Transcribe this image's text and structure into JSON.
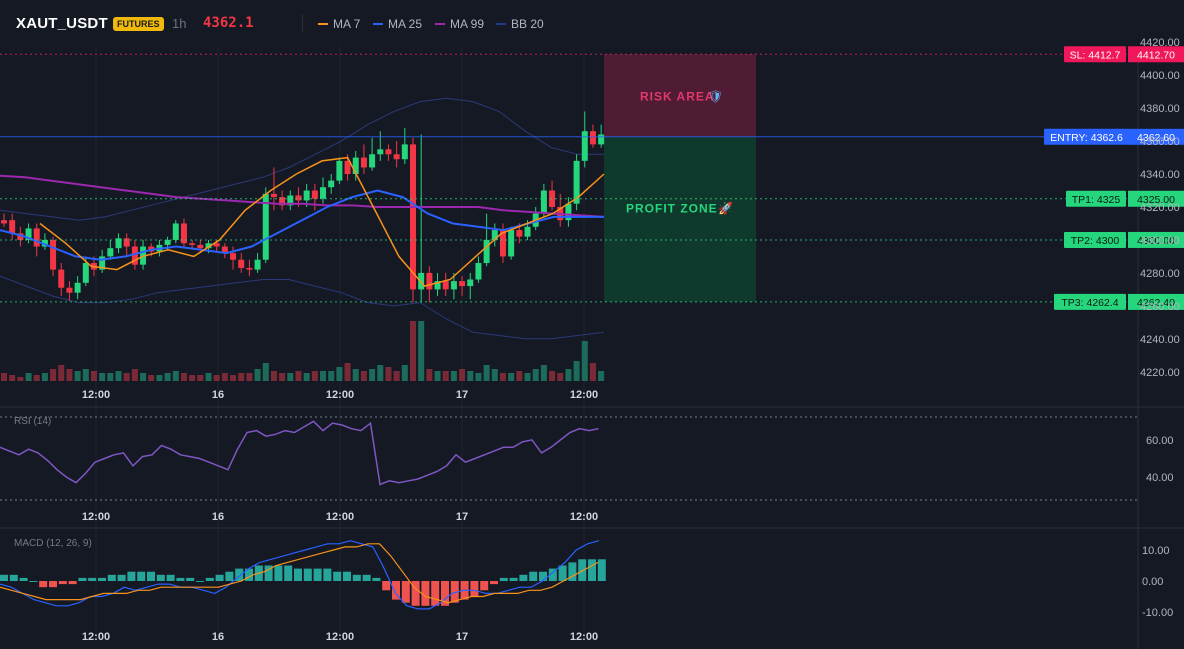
{
  "header": {
    "symbol": "XAUT_USDT",
    "badge": "FUTURES",
    "interval": "1h",
    "last_price": "4362.1",
    "indicators": [
      {
        "label": "MA 7",
        "color": "#f7931a"
      },
      {
        "label": "MA 25",
        "color": "#2962ff"
      },
      {
        "label": "MA 99",
        "color": "#9c27b0"
      },
      {
        "label": "BB 20",
        "color": "#1e3a8a"
      }
    ]
  },
  "colors": {
    "background": "#151924",
    "up": "#26d67c",
    "down": "#f23645",
    "entry_line": "#2962ff",
    "sl_line": "#e91e63",
    "tp_line": "#26d67c",
    "risk_zone": "#5b1d36",
    "profit_zone": "#0f3d30"
  },
  "price_scale": {
    "min": 4215,
    "max": 4425,
    "ticks": [
      "4420.00",
      "4400.00",
      "4380.00",
      "4360.00",
      "4340.00",
      "4320.00",
      "4300.00",
      "4280.00",
      "4260.00",
      "4240.00",
      "4220.00"
    ]
  },
  "time_axis": {
    "labels": [
      "12:00",
      "16",
      "12:00",
      "17",
      "12:00"
    ]
  },
  "levels": {
    "sl": {
      "tag": "SL: 4412.7",
      "price_label": "4412.70",
      "value": 4412.7
    },
    "entry": {
      "tag": "ENTRY: 4362.6",
      "price_label": "4362.60",
      "value": 4362.6
    },
    "tp1": {
      "tag": "TP1: 4325",
      "price_label": "4325.00",
      "value": 4325
    },
    "tp2": {
      "tag": "TP2: 4300",
      "price_label": "4300.00",
      "value": 4300
    },
    "tp3": {
      "tag": "TP3: 4262.4",
      "price_label": "4262.40",
      "value": 4262.4
    }
  },
  "zones": {
    "risk_label": "RISK AREA",
    "risk_icon": "shield-icon",
    "profit_label": "PROFIT ZONE",
    "profit_icon": "rocket-icon"
  },
  "chart_data": {
    "type": "candlestick",
    "candles": [
      [
        4312,
        4310,
        4308,
        4316
      ],
      [
        4312,
        4304,
        4300,
        4316
      ],
      [
        4304,
        4300,
        4296,
        4308
      ],
      [
        4300,
        4307,
        4298,
        4310
      ],
      [
        4307,
        4296,
        4290,
        4310
      ],
      [
        4296,
        4300,
        4294,
        4304
      ],
      [
        4300,
        4282,
        4278,
        4302
      ],
      [
        4282,
        4271,
        4266,
        4286
      ],
      [
        4271,
        4268,
        4263,
        4275
      ],
      [
        4268,
        4274,
        4264,
        4278
      ],
      [
        4274,
        4286,
        4272,
        4290
      ],
      [
        4286,
        4282,
        4278,
        4290
      ],
      [
        4282,
        4290,
        4280,
        4294
      ],
      [
        4290,
        4295,
        4288,
        4300
      ],
      [
        4295,
        4301,
        4292,
        4304
      ],
      [
        4301,
        4296,
        4290,
        4304
      ],
      [
        4296,
        4285,
        4282,
        4300
      ],
      [
        4285,
        4296,
        4282,
        4300
      ],
      [
        4296,
        4293,
        4290,
        4298
      ],
      [
        4293,
        4297,
        4290,
        4300
      ],
      [
        4297,
        4300,
        4294,
        4302
      ],
      [
        4300,
        4310,
        4298,
        4312
      ],
      [
        4310,
        4298,
        4296,
        4313
      ],
      [
        4298,
        4297,
        4294,
        4300
      ],
      [
        4297,
        4295,
        4292,
        4300
      ],
      [
        4295,
        4298,
        4292,
        4300
      ],
      [
        4298,
        4296,
        4293,
        4300
      ],
      [
        4296,
        4292,
        4289,
        4298
      ],
      [
        4292,
        4288,
        4282,
        4296
      ],
      [
        4288,
        4283,
        4280,
        4292
      ],
      [
        4283,
        4282,
        4278,
        4288
      ],
      [
        4282,
        4288,
        4280,
        4292
      ],
      [
        4288,
        4328,
        4286,
        4332
      ],
      [
        4328,
        4326,
        4318,
        4344
      ],
      [
        4326,
        4321,
        4318,
        4330
      ],
      [
        4321,
        4327,
        4318,
        4330
      ],
      [
        4327,
        4324,
        4320,
        4332
      ],
      [
        4324,
        4330,
        4320,
        4334
      ],
      [
        4330,
        4325,
        4318,
        4334
      ],
      [
        4325,
        4332,
        4322,
        4338
      ],
      [
        4332,
        4336,
        4328,
        4340
      ],
      [
        4336,
        4348,
        4334,
        4350
      ],
      [
        4348,
        4340,
        4336,
        4352
      ],
      [
        4340,
        4350,
        4336,
        4354
      ],
      [
        4350,
        4344,
        4340,
        4358
      ],
      [
        4344,
        4352,
        4342,
        4362
      ],
      [
        4352,
        4355,
        4348,
        4366
      ],
      [
        4355,
        4352,
        4348,
        4358
      ],
      [
        4352,
        4349,
        4344,
        4360
      ],
      [
        4349,
        4358,
        4346,
        4368
      ],
      [
        4358,
        4270,
        4262,
        4362
      ],
      [
        4270,
        4280,
        4262,
        4364
      ],
      [
        4280,
        4270,
        4262,
        4284
      ],
      [
        4270,
        4275,
        4266,
        4280
      ],
      [
        4275,
        4270,
        4266,
        4280
      ],
      [
        4270,
        4275,
        4264,
        4280
      ],
      [
        4275,
        4272,
        4266,
        4278
      ],
      [
        4272,
        4276,
        4264,
        4280
      ],
      [
        4276,
        4286,
        4274,
        4290
      ],
      [
        4286,
        4300,
        4284,
        4316
      ],
      [
        4300,
        4306,
        4296,
        4310
      ],
      [
        4306,
        4290,
        4286,
        4310
      ],
      [
        4290,
        4306,
        4288,
        4308
      ],
      [
        4306,
        4302,
        4298,
        4310
      ],
      [
        4302,
        4308,
        4300,
        4312
      ],
      [
        4308,
        4316,
        4306,
        4320
      ],
      [
        4316,
        4330,
        4314,
        4334
      ],
      [
        4330,
        4320,
        4318,
        4336
      ],
      [
        4320,
        4312,
        4308,
        4328
      ],
      [
        4312,
        4322,
        4308,
        4326
      ],
      [
        4322,
        4348,
        4318,
        4352
      ],
      [
        4348,
        4366,
        4344,
        4378
      ],
      [
        4366,
        4358,
        4356,
        4370
      ],
      [
        4358,
        4364,
        4356,
        4370
      ]
    ],
    "volumes": [
      4,
      3,
      2,
      4,
      3,
      4,
      6,
      8,
      6,
      5,
      6,
      5,
      4,
      4,
      5,
      4,
      6,
      4,
      3,
      3,
      4,
      5,
      4,
      3,
      3,
      4,
      3,
      4,
      3,
      4,
      4,
      6,
      9,
      5,
      4,
      4,
      5,
      4,
      5,
      5,
      5,
      7,
      9,
      6,
      5,
      6,
      8,
      7,
      5,
      8,
      30,
      30,
      6,
      5,
      5,
      5,
      6,
      5,
      4,
      8,
      6,
      4,
      4,
      5,
      4,
      6,
      8,
      5,
      4,
      6,
      10,
      20,
      9,
      5
    ],
    "rsi": [
      56,
      54,
      52,
      55,
      53,
      49,
      44,
      40,
      37,
      42,
      48,
      50,
      52,
      53,
      46,
      51,
      52,
      57,
      55,
      52,
      51,
      50,
      48,
      46,
      44,
      55,
      64,
      65,
      62,
      63,
      65,
      64,
      67,
      70,
      65,
      69,
      68,
      66,
      65,
      69,
      36,
      38,
      37,
      38,
      39,
      41,
      43,
      46,
      52,
      48,
      50,
      52,
      54,
      56,
      56,
      59,
      60,
      53,
      56,
      60,
      64,
      66,
      65,
      66
    ],
    "rsi_levels": [
      "60.00",
      "40.00"
    ],
    "macd_hist": [
      2,
      2,
      1,
      0,
      -2,
      -2,
      -1,
      -1,
      1,
      1,
      1,
      2,
      2,
      3,
      3,
      3,
      2,
      2,
      1,
      1,
      0,
      1,
      2,
      3,
      4,
      4,
      5,
      5,
      5,
      5,
      4,
      4,
      4,
      4,
      3,
      3,
      2,
      2,
      1,
      -3,
      -6,
      -7,
      -8,
      -8,
      -8,
      -8,
      -7,
      -6,
      -5,
      -3,
      -1,
      1,
      1,
      2,
      3,
      3,
      4,
      5,
      6,
      7,
      7,
      7
    ],
    "macd_line": [
      -1,
      -2,
      -4,
      -6,
      -7,
      -8,
      -8,
      -7,
      -5,
      -5,
      -4,
      -2,
      -3,
      -2,
      -1,
      -1,
      -2,
      -2,
      -3,
      -4,
      -2,
      1,
      4,
      6,
      7,
      8,
      9,
      10,
      11,
      12,
      12,
      13,
      12,
      11,
      4,
      -4,
      -8,
      -9,
      -9,
      -7,
      -4,
      -3,
      -3,
      -4,
      -4,
      -3,
      -2,
      -2,
      0,
      3,
      6,
      10,
      12,
      13
    ],
    "signal_line": [
      -2,
      -3,
      -4,
      -5,
      -6,
      -6,
      -6,
      -6,
      -5,
      -4,
      -4,
      -4,
      -3,
      -3,
      -2,
      -2,
      -2,
      -2,
      -2,
      -2,
      -1,
      0,
      2,
      3,
      5,
      6,
      7,
      8,
      9,
      10,
      11,
      11,
      12,
      12,
      8,
      3,
      -2,
      -5,
      -6,
      -7,
      -6,
      -5,
      -5,
      -4,
      -4,
      -4,
      -3,
      -3,
      -2,
      0,
      2,
      4,
      6
    ],
    "macd_levels": [
      "10.00",
      "0.00",
      "-10.00"
    ]
  },
  "panes": {
    "rsi_title": "RSI (14)",
    "macd_title": "MACD (12, 26, 9)"
  }
}
